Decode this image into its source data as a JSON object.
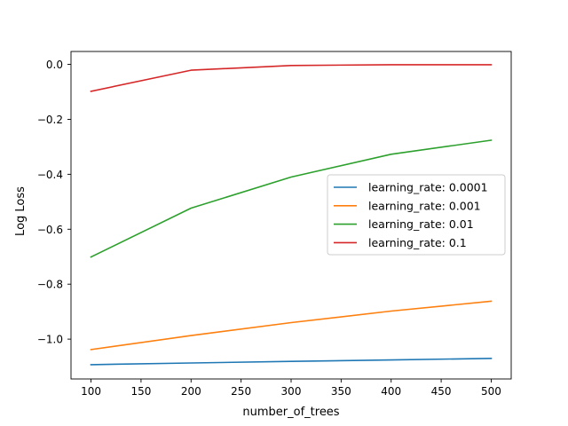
{
  "chart_data": {
    "type": "line",
    "xlabel": "number_of_trees",
    "ylabel": "Log Loss",
    "xlim": [
      80,
      520
    ],
    "ylim": [
      -1.145,
      0.047
    ],
    "x": [
      100,
      200,
      300,
      400,
      500
    ],
    "xticks": [
      100,
      150,
      200,
      250,
      300,
      350,
      400,
      450,
      500
    ],
    "yticks": [
      0.0,
      -0.2,
      -0.4,
      -0.6,
      -0.8,
      -1.0
    ],
    "ytick_labels": [
      "0.0",
      "−0.2",
      "−0.4",
      "−0.6",
      "−0.8",
      "−1.0"
    ],
    "grid": false,
    "legend_position": "center-right",
    "series": [
      {
        "name": "learning_rate: 0.0001",
        "color": "#1f77b4",
        "values": [
          -1.093,
          -1.087,
          -1.081,
          -1.076,
          -1.07
        ]
      },
      {
        "name": "learning_rate: 0.001",
        "color": "#ff7f0e",
        "values": [
          -1.038,
          -0.987,
          -0.94,
          -0.898,
          -0.862
        ]
      },
      {
        "name": "learning_rate: 0.01",
        "color": "#2ca02c",
        "values": [
          -0.701,
          -0.523,
          -0.41,
          -0.327,
          -0.276
        ]
      },
      {
        "name": "learning_rate: 0.1",
        "color": "#d62728",
        "values": [
          -0.098,
          -0.021,
          -0.004,
          -0.001,
          -0.001
        ]
      }
    ]
  }
}
